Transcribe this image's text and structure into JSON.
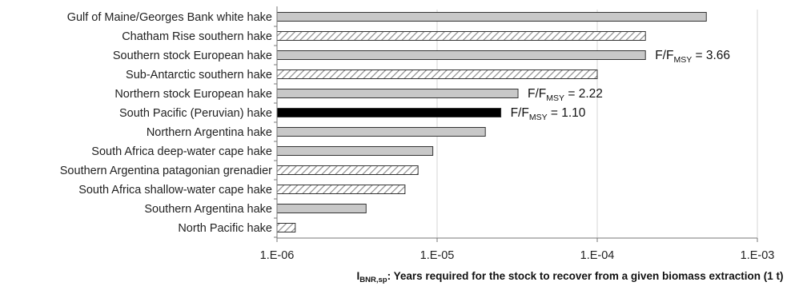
{
  "chart_data": {
    "type": "bar",
    "orientation": "horizontal",
    "x_scale": "log",
    "xlim": [
      1e-06,
      0.001
    ],
    "x_ticks": [
      "1.E-06",
      "1.E-05",
      "1.E-04",
      "1.E-03"
    ],
    "xlabel": {
      "main": "I",
      "subscript": "BNR,sp",
      "rest": ": Years required for the stock to recover from a given biomass extraction (1 t)"
    },
    "grid": "vertical major gridlines",
    "categories": [
      "Gulf of Maine/Georges Bank white hake",
      "Chatham Rise southern hake",
      "Southern stock European hake",
      "Sub-Antarctic southern hake",
      "Northern stock European hake",
      "South Pacific (Peruvian) hake",
      "Northern Argentina hake",
      "South Africa deep-water cape hake",
      "Southern Argentina patagonian grenadier",
      "South Africa shallow-water cape hake",
      "Southern Argentina hake",
      "North Pacific hake"
    ],
    "values": [
      0.00048,
      0.0002,
      0.0002,
      0.0001,
      3.2e-05,
      2.5e-05,
      2e-05,
      9.4e-06,
      7.6e-06,
      6.3e-06,
      3.6e-06,
      1.3e-06
    ],
    "bar_styles": [
      "solid-gray",
      "hatched",
      "solid-gray",
      "hatched",
      "solid-gray",
      "solid-black",
      "solid-gray",
      "solid-gray",
      "hatched",
      "hatched",
      "solid-gray",
      "hatched"
    ],
    "annotations": [
      {
        "category_index": 2,
        "prefix": "F/F",
        "subscript": "MSY",
        "suffix": " = 3.66"
      },
      {
        "category_index": 4,
        "prefix": "F/F",
        "subscript": "MSY",
        "suffix": " = 2.22"
      },
      {
        "category_index": 5,
        "prefix": "F/F",
        "subscript": "MSY",
        "suffix": " = 1.10"
      }
    ],
    "colors": {
      "gray_fill": "#c8c8c8",
      "black_fill": "#000000",
      "hatch_line": "#8c8c8c",
      "hatch_bg": "#ffffff",
      "bar_stroke": "#333333",
      "grid": "#d4d4d4",
      "axis": "#777777"
    }
  }
}
